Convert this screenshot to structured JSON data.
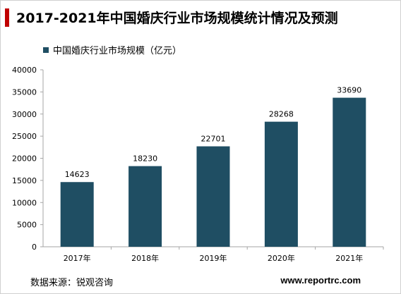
{
  "header": {
    "title": "2017-2021年中国婚庆行业市场规模统计情况及预测"
  },
  "footer": {
    "source": "数据来源：锐观咨询",
    "website": "www.reportrc.com"
  },
  "colors": {
    "accent": "#c00000",
    "bar": "#1f4e63",
    "axis": "#a6a6a6",
    "text": "#000000"
  },
  "chart_data": {
    "type": "bar",
    "title": "2017-2021年中国婚庆行业市场规模统计情况及预测",
    "categories": [
      "2017年",
      "2018年",
      "2019年",
      "2020年",
      "2021年"
    ],
    "series": [
      {
        "name": "中国婚庆行业市场规模（亿元）",
        "values": [
          14623,
          18230,
          22701,
          28268,
          33690
        ]
      }
    ],
    "ylim": [
      0,
      40000
    ],
    "yticks": [
      0,
      5000,
      10000,
      15000,
      20000,
      25000,
      30000,
      35000,
      40000
    ],
    "grid": false,
    "legend": "top-left",
    "data_labels": true
  }
}
